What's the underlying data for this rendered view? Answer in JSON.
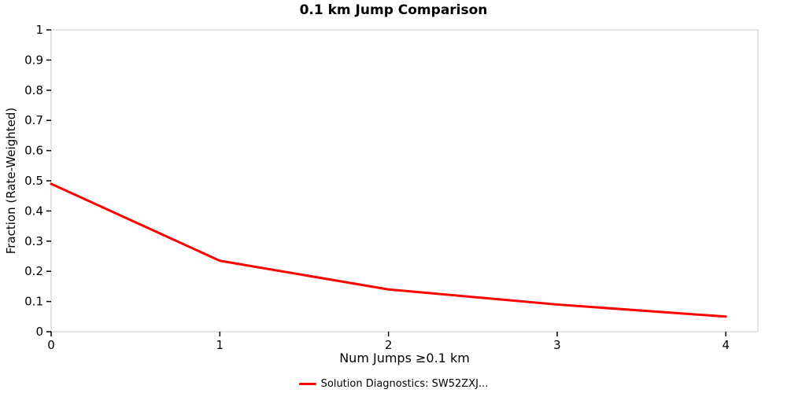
{
  "title": "0.1 km Jump Comparison",
  "axes": {
    "xlabel": "Num Jumps ≥0.1 km",
    "ylabel": "Fraction (Rate-Weighted)"
  },
  "legend": {
    "label": "Solution Diagnostics: SW52ZXJ...",
    "swatch_color": "#ff0000"
  },
  "chart_data": {
    "type": "line",
    "title": "0.1 km Jump Comparison",
    "xlabel": "Num Jumps ≥0.1 km",
    "ylabel": "Fraction (Rate-Weighted)",
    "x": [
      0,
      1,
      2,
      3,
      4
    ],
    "series": [
      {
        "name": "Solution Diagnostics: SW52ZXJ...",
        "color": "#ff0000",
        "values": [
          0.49,
          0.235,
          0.14,
          0.09,
          0.05
        ]
      }
    ],
    "xlim": [
      0,
      4.19
    ],
    "ylim": [
      0,
      1
    ],
    "x_ticks": [
      0,
      1,
      2,
      3,
      4
    ],
    "y_ticks": [
      0,
      0.1,
      0.2,
      0.3,
      0.4,
      0.5,
      0.6,
      0.7,
      0.8,
      0.9,
      1
    ],
    "grid": false,
    "legend_position": "bottom",
    "plot_border_color": "#c8c8c8",
    "tick_color": "#000000"
  }
}
